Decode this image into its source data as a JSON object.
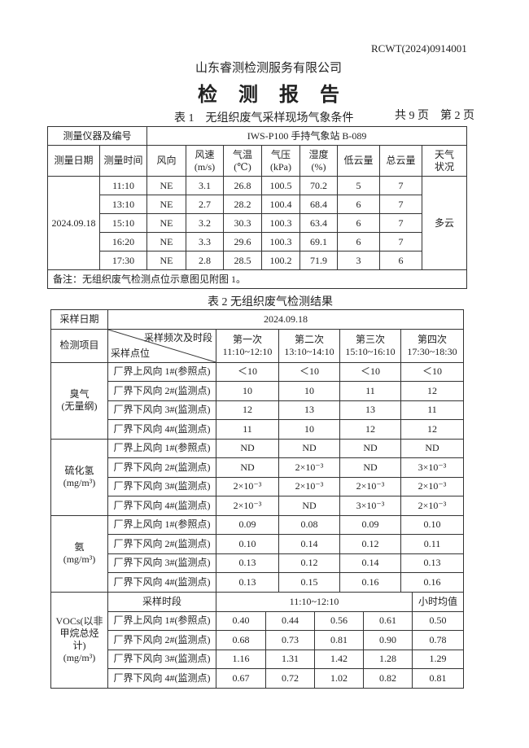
{
  "header": {
    "report_no": "RCWT(2024)0914001",
    "company": "山东睿测检测服务有限公司",
    "title": "检 测 报 告",
    "total_pages": "共 9 页",
    "page": "第 2 页"
  },
  "table1": {
    "caption": "表 1　无组织废气采样现场气象条件",
    "instrument_label": "测量仪器及编号",
    "instrument_value": "IWS-P100 手持气象站 B-089",
    "columns": [
      "测量日期",
      "测量时间",
      "风向",
      "风速\n(m/s)",
      "气温\n(℃)",
      "气压\n(kPa)",
      "湿度\n(%)",
      "低云量",
      "总云量",
      "天气\n状况"
    ],
    "date": "2024.09.18",
    "weather": "多云",
    "rows": [
      [
        "11:10",
        "NE",
        "3.1",
        "26.8",
        "100.5",
        "70.2",
        "5",
        "7"
      ],
      [
        "13:10",
        "NE",
        "2.7",
        "28.2",
        "100.4",
        "68.4",
        "6",
        "7"
      ],
      [
        "15:10",
        "NE",
        "3.2",
        "30.3",
        "100.3",
        "63.4",
        "6",
        "7"
      ],
      [
        "16:20",
        "NE",
        "3.3",
        "29.6",
        "100.3",
        "69.1",
        "6",
        "7"
      ],
      [
        "17:30",
        "NE",
        "2.8",
        "28.5",
        "100.2",
        "71.9",
        "3",
        "6"
      ]
    ],
    "note": "备注：无组织废气检测点位示意图见附图 1。"
  },
  "table2": {
    "caption": "表 2  无组织废气检测结果",
    "date_label": "采样日期",
    "date_value": "2024.09.18",
    "item_label": "检测项目",
    "diag_top": "采样频次及时段",
    "diag_bottom": "采样点位",
    "rounds": [
      {
        "name": "第一次",
        "time": "11:10~12:10"
      },
      {
        "name": "第二次",
        "time": "13:10~14:10"
      },
      {
        "name": "第三次",
        "time": "15:10~16:10"
      },
      {
        "name": "第四次",
        "time": "17:30~18:30"
      }
    ],
    "groups": [
      {
        "item": "臭气",
        "unit": "(无量纲)",
        "rows": [
          {
            "point": "厂界上风向 1#(参照点)",
            "values": [
              "＜10",
              "＜10",
              "＜10",
              "＜10"
            ]
          },
          {
            "point": "厂界下风向 2#(监测点)",
            "values": [
              "10",
              "10",
              "11",
              "12"
            ]
          },
          {
            "point": "厂界下风向 3#(监测点)",
            "values": [
              "12",
              "13",
              "13",
              "11"
            ]
          },
          {
            "point": "厂界下风向 4#(监测点)",
            "values": [
              "11",
              "10",
              "12",
              "12"
            ]
          }
        ]
      },
      {
        "item": "硫化氢",
        "unit": "(mg/m³)",
        "rows": [
          {
            "point": "厂界上风向 1#(参照点)",
            "values": [
              "ND",
              "ND",
              "ND",
              "ND"
            ]
          },
          {
            "point": "厂界下风向 2#(监测点)",
            "values": [
              "ND",
              "2×10⁻³",
              "ND",
              "3×10⁻³"
            ]
          },
          {
            "point": "厂界下风向 3#(监测点)",
            "values": [
              "2×10⁻³",
              "2×10⁻³",
              "2×10⁻³",
              "2×10⁻³"
            ]
          },
          {
            "point": "厂界下风向 4#(监测点)",
            "values": [
              "2×10⁻³",
              "ND",
              "3×10⁻³",
              "2×10⁻³"
            ]
          }
        ]
      },
      {
        "item": "氨",
        "unit": "(mg/m³)",
        "rows": [
          {
            "point": "厂界上风向 1#(参照点)",
            "values": [
              "0.09",
              "0.08",
              "0.09",
              "0.10"
            ]
          },
          {
            "point": "厂界下风向 2#(监测点)",
            "values": [
              "0.10",
              "0.14",
              "0.12",
              "0.11"
            ]
          },
          {
            "point": "厂界下风向 3#(监测点)",
            "values": [
              "0.13",
              "0.12",
              "0.14",
              "0.13"
            ]
          },
          {
            "point": "厂界下风向 4#(监测点)",
            "values": [
              "0.13",
              "0.15",
              "0.16",
              "0.16"
            ]
          }
        ]
      }
    ],
    "vocs": {
      "item": "VOCs(以非甲烷总烃计)",
      "unit": "(mg/m³)",
      "period_label": "采样时段",
      "period_value": "11:10~12:10",
      "avg_label": "小时均值",
      "rows": [
        {
          "point": "厂界上风向 1#(参照点)",
          "values": [
            "0.40",
            "0.44",
            "0.56",
            "0.61"
          ],
          "avg": "0.50"
        },
        {
          "point": "厂界下风向 2#(监测点)",
          "values": [
            "0.68",
            "0.73",
            "0.81",
            "0.90"
          ],
          "avg": "0.78"
        },
        {
          "point": "厂界下风向 3#(监测点)",
          "values": [
            "1.16",
            "1.31",
            "1.42",
            "1.28"
          ],
          "avg": "1.29"
        },
        {
          "point": "厂界下风向 4#(监测点)",
          "values": [
            "0.67",
            "0.72",
            "1.02",
            "0.82"
          ],
          "avg": "0.81"
        }
      ]
    }
  }
}
